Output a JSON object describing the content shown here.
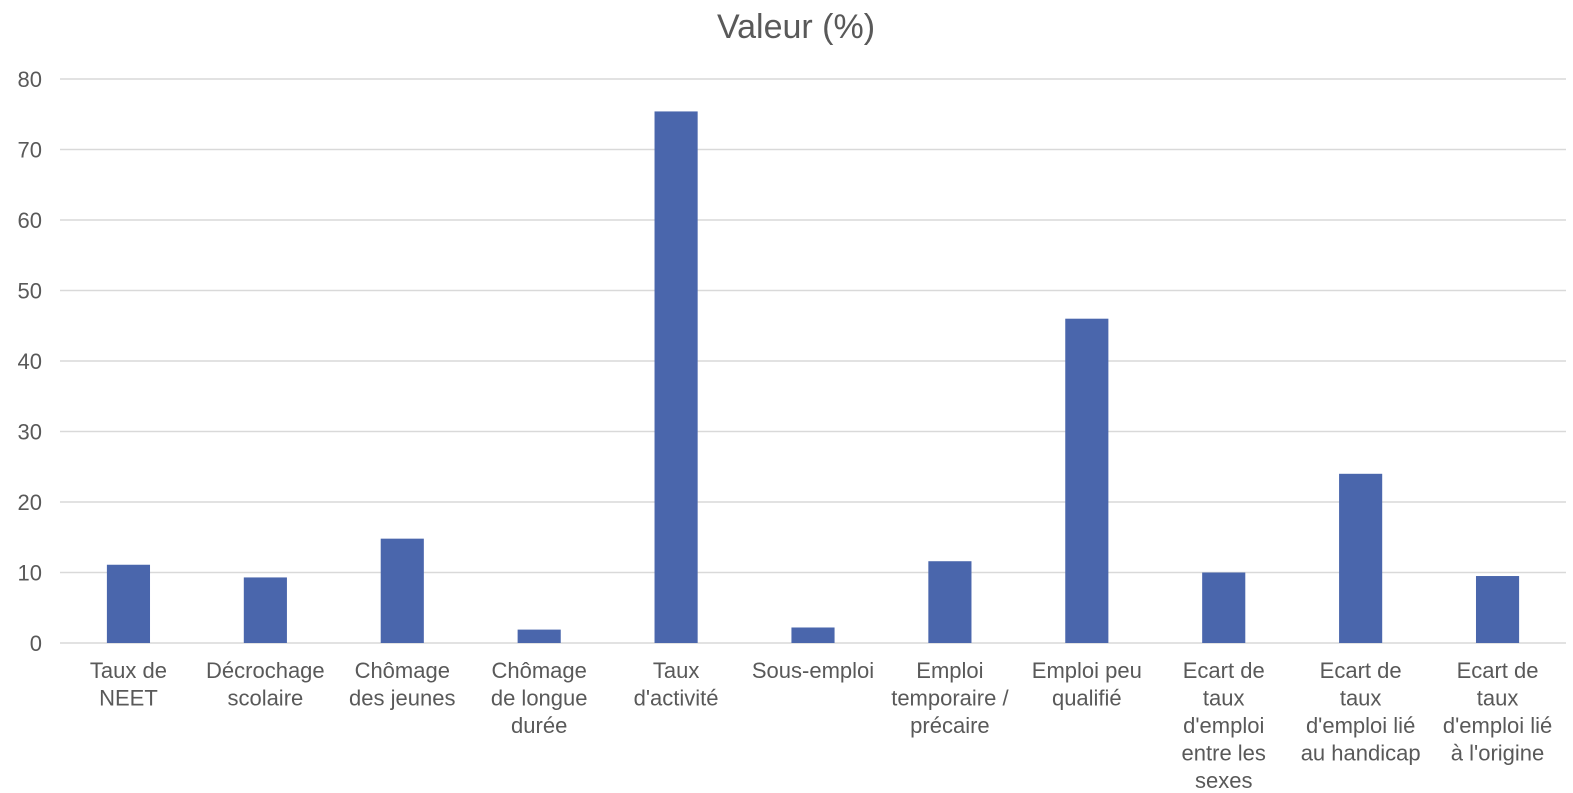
{
  "chart_data": {
    "type": "bar",
    "title": "Valeur (%)",
    "xlabel": "",
    "ylabel": "",
    "ylim": [
      0,
      80
    ],
    "yticks": [
      0,
      10,
      20,
      30,
      40,
      50,
      60,
      70,
      80
    ],
    "grid": true,
    "legend": "none",
    "color": "#4a66ac",
    "categories": [
      [
        "Taux de",
        "NEET"
      ],
      [
        "Décrochage",
        "scolaire"
      ],
      [
        "Chômage",
        "des jeunes"
      ],
      [
        "Chômage",
        "de longue",
        "durée"
      ],
      [
        "Taux",
        "d'activité"
      ],
      [
        "Sous-emploi"
      ],
      [
        "Emploi",
        "temporaire /",
        "précaire"
      ],
      [
        "Emploi peu",
        "qualifié"
      ],
      [
        "Ecart de",
        "taux",
        "d'emploi",
        "entre les",
        "sexes"
      ],
      [
        "Ecart de",
        "taux",
        "d'emploi lié",
        "au handicap"
      ],
      [
        "Ecart de",
        "taux",
        "d'emploi lié",
        "à l'origine"
      ]
    ],
    "values": [
      11.1,
      9.3,
      14.8,
      1.9,
      75.4,
      2.2,
      11.6,
      46.0,
      10.0,
      24.0,
      9.5
    ]
  }
}
